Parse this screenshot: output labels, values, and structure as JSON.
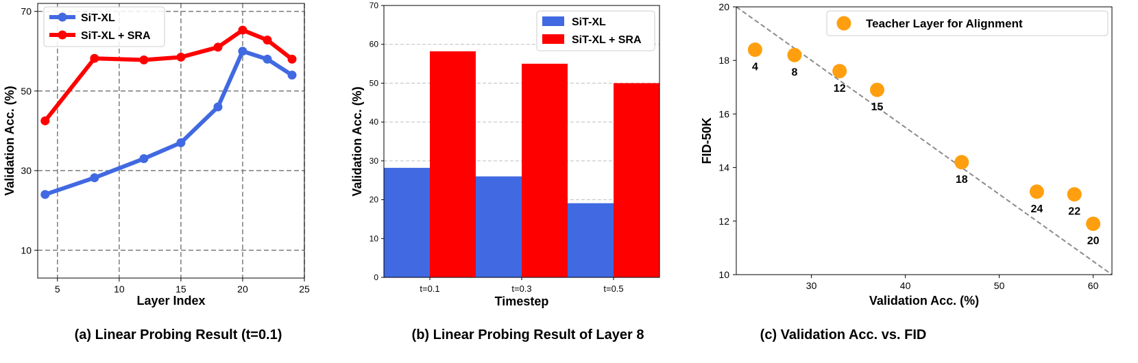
{
  "chart_data": [
    {
      "type": "line",
      "caption": "(a) Linear Probing Result (t=0.1)",
      "xlabel": "Layer Index",
      "ylabel": "Validation Acc. (%)",
      "xlim": [
        3.4,
        25
      ],
      "ylim": [
        3,
        72
      ],
      "xticks": [
        5,
        10,
        15,
        20,
        25
      ],
      "yticks": [
        10,
        30,
        50,
        70
      ],
      "grid": true,
      "legend_position": "upper-left",
      "x": [
        4,
        8,
        12,
        15,
        18,
        20,
        22,
        24
      ],
      "series": [
        {
          "name": "SiT-XL",
          "color": "#4169e1",
          "values": [
            24,
            28.2,
            33,
            37,
            46,
            60,
            58,
            54
          ]
        },
        {
          "name": "SiT-XL + SRA",
          "color": "#ff0000",
          "values": [
            42.5,
            58.2,
            57.8,
            58.5,
            61,
            65.3,
            62.8,
            58
          ]
        }
      ]
    },
    {
      "type": "bar",
      "caption": "(b) Linear Probing Result of Layer 8",
      "xlabel": "Timestep",
      "ylabel": "Validation Acc. (%)",
      "ylim": [
        0,
        70
      ],
      "yticks": [
        0,
        10,
        20,
        30,
        40,
        50,
        60,
        70
      ],
      "grid": "y",
      "legend_position": "upper-right",
      "categories": [
        "t=0.1",
        "t=0.3",
        "t=0.5"
      ],
      "series": [
        {
          "name": "SiT-XL",
          "color": "#4169e1",
          "values": [
            28.2,
            26,
            19.1
          ]
        },
        {
          "name": "SiT-XL + SRA",
          "color": "#ff0000",
          "values": [
            58.2,
            55,
            50
          ]
        }
      ]
    },
    {
      "type": "scatter",
      "caption": "(c) Validation Acc. vs. FID",
      "xlabel": "Validation Acc. (%)",
      "ylabel": "FID-50K",
      "xlim": [
        22,
        62
      ],
      "ylim": [
        10,
        20
      ],
      "xticks": [
        30,
        40,
        50,
        60
      ],
      "yticks": [
        10,
        12,
        14,
        16,
        18,
        20
      ],
      "legend_position": "upper-right",
      "series_name": "Teacher Layer for Alignment",
      "color": "#ff9f0f",
      "trend_line": {
        "from": [
          22,
          20
        ],
        "to": [
          62,
          10
        ]
      },
      "points": [
        {
          "x": 24,
          "y": 18.4,
          "label": "4"
        },
        {
          "x": 28.2,
          "y": 18.2,
          "label": "8"
        },
        {
          "x": 33,
          "y": 17.6,
          "label": "12"
        },
        {
          "x": 37,
          "y": 16.9,
          "label": "15"
        },
        {
          "x": 46,
          "y": 14.2,
          "label": "18"
        },
        {
          "x": 54,
          "y": 13.1,
          "label": "24"
        },
        {
          "x": 58,
          "y": 13,
          "label": "22"
        },
        {
          "x": 60,
          "y": 11.9,
          "label": "20"
        }
      ]
    }
  ]
}
